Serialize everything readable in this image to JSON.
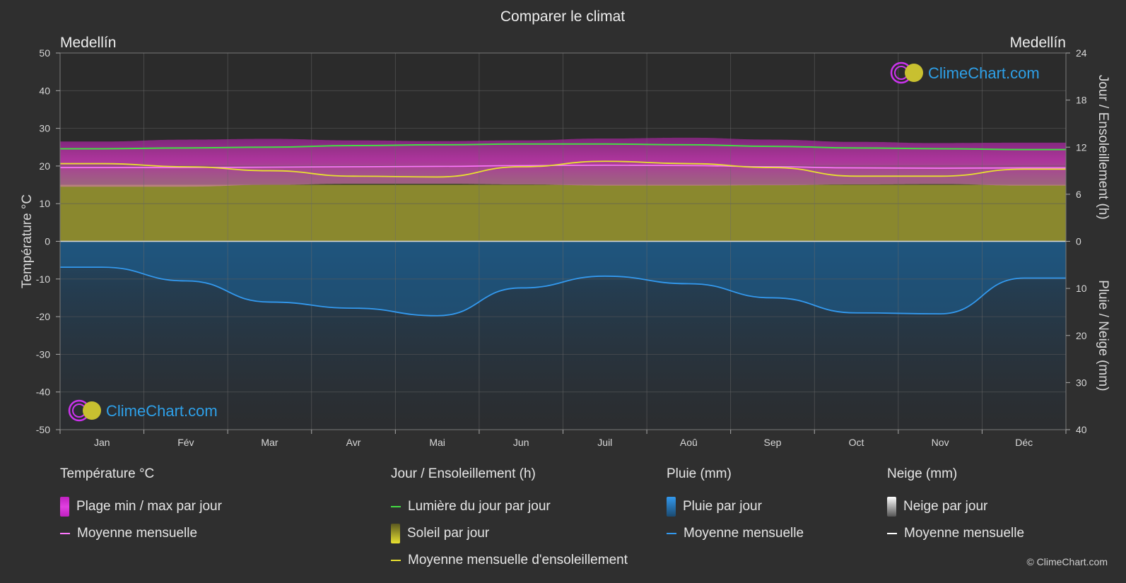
{
  "title": "Comparer le climat",
  "location_left": "Medellín",
  "location_right": "Medellín",
  "brand": "ClimeChart.com",
  "copyright": "© ClimeChart.com",
  "chart_data": {
    "type": "area",
    "categories": [
      "Jan",
      "Fév",
      "Mar",
      "Avr",
      "Mai",
      "Jun",
      "Juil",
      "Aoû",
      "Sep",
      "Oct",
      "Nov",
      "Déc"
    ],
    "y_left": {
      "label": "Température °C",
      "range": [
        -50,
        50
      ],
      "ticks": [
        50,
        40,
        30,
        20,
        10,
        0,
        -10,
        -20,
        -30,
        -40,
        -50
      ]
    },
    "y_right_top": {
      "label": "Jour / Ensoleillement (h)",
      "range": [
        0,
        24
      ],
      "ticks": [
        24,
        18,
        12,
        6,
        0
      ]
    },
    "y_right_bottom": {
      "label": "Pluie / Neige (mm)",
      "range": [
        0,
        40
      ],
      "ticks": [
        0,
        10,
        20,
        30,
        40
      ]
    },
    "grid": true,
    "series": [
      {
        "name": "Lumière du jour par jour",
        "unit": "h",
        "color": "#44dd44",
        "values": [
          11.8,
          11.9,
          12.0,
          12.2,
          12.3,
          12.4,
          12.4,
          12.3,
          12.1,
          11.9,
          11.8,
          11.7
        ]
      },
      {
        "name": "Moyenne mensuelle d'ensoleillement",
        "unit": "h",
        "color": "#e8e030",
        "values": [
          9.9,
          9.5,
          9.0,
          8.3,
          8.2,
          9.5,
          10.2,
          9.9,
          9.4,
          8.3,
          8.3,
          9.2
        ]
      },
      {
        "name": "Moyenne mensuelle (température)",
        "unit": "°C",
        "color": "#ff77ff",
        "values": [
          19.6,
          19.6,
          19.7,
          19.8,
          19.9,
          20.1,
          20.2,
          20.1,
          19.8,
          19.5,
          19.4,
          19.5
        ]
      },
      {
        "name": "Plage min / max par jour",
        "unit": "°C",
        "color": "#dd22cc",
        "min": [
          14.5,
          14.5,
          15.0,
          15.3,
          15.3,
          15.1,
          14.8,
          14.8,
          14.9,
          15.1,
          15.2,
          14.8
        ],
        "max": [
          26.5,
          27.0,
          27.2,
          26.8,
          26.6,
          26.8,
          27.3,
          27.5,
          27.0,
          26.4,
          26.1,
          26.2
        ]
      },
      {
        "name": "Moyenne mensuelle (pluie)",
        "unit": "mm",
        "color": "#3399ee",
        "values": [
          5.5,
          8.4,
          12.9,
          14.2,
          15.8,
          9.9,
          7.4,
          9.0,
          12.0,
          15.2,
          15.4,
          7.8
        ]
      }
    ]
  },
  "legend": {
    "temperature": {
      "title": "Température °C",
      "items": [
        "Plage min / max par jour",
        "Moyenne mensuelle"
      ]
    },
    "sun": {
      "title": "Jour / Ensoleillement (h)",
      "items": [
        "Lumière du jour par jour",
        "Soleil par jour",
        "Moyenne mensuelle d'ensoleillement"
      ]
    },
    "rain": {
      "title": "Pluie (mm)",
      "items": [
        "Pluie par jour",
        "Moyenne mensuelle"
      ]
    },
    "snow": {
      "title": "Neige (mm)",
      "items": [
        "Neige par jour",
        "Moyenne mensuelle"
      ]
    }
  },
  "colors": {
    "background": "#2f2f2f",
    "plot": "#2b2b2b",
    "daylight": "#44dd44",
    "sunshine": "#e8e030",
    "sunshine_fill": "#8e8c2e",
    "temp_range": "#dd22cc",
    "temp_mean": "#ff77ff",
    "rain": "#3399ee",
    "rain_fill": "#1d5d8e",
    "snow": "#ffffff",
    "brand_text": "#2ea0e8"
  }
}
